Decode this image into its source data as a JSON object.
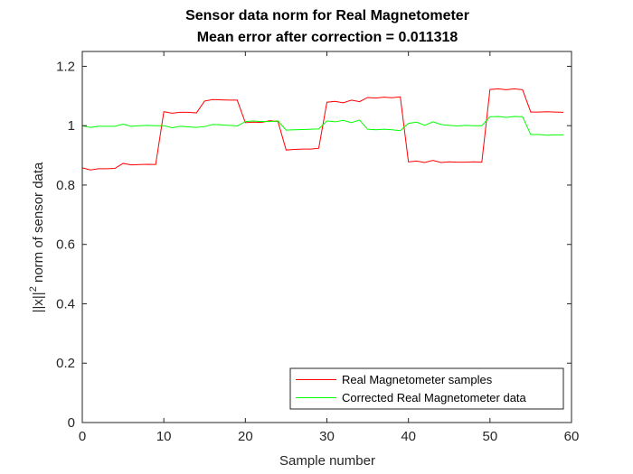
{
  "chart_data": {
    "type": "line",
    "title": "Sensor data norm for Real Magnetometer",
    "subtitle": "Mean error after correction = 0.011318",
    "xlabel": "Sample number",
    "ylabel_prefix": "||x||",
    "ylabel_exponent": "2",
    "ylabel_suffix": " norm of sensor data",
    "xlim": [
      0,
      60
    ],
    "ylim": [
      0,
      1.25
    ],
    "xticks": [
      "0",
      "10",
      "20",
      "30",
      "40",
      "50",
      "60"
    ],
    "xtick_values": [
      0,
      10,
      20,
      30,
      40,
      50,
      60
    ],
    "yticks": [
      "0",
      "0.2",
      "0.4",
      "0.6",
      "0.8",
      "1",
      "1.2"
    ],
    "ytick_values": [
      0,
      0.2,
      0.4,
      0.6,
      0.8,
      1.0,
      1.2
    ],
    "grid": false,
    "legend_position": "bottom-right",
    "x": [
      0,
      1,
      2,
      3,
      4,
      5,
      6,
      7,
      8,
      9,
      10,
      11,
      12,
      13,
      14,
      15,
      16,
      17,
      18,
      19,
      20,
      21,
      22,
      23,
      24,
      25,
      26,
      27,
      28,
      29,
      30,
      31,
      32,
      33,
      34,
      35,
      36,
      37,
      38,
      39,
      40,
      41,
      42,
      43,
      44,
      45,
      46,
      47,
      48,
      49,
      50,
      51,
      52,
      53,
      54,
      55,
      56,
      57,
      58,
      59
    ],
    "series": [
      {
        "name": "Real Magnetometer samples",
        "color": "#ff0000",
        "values": [
          0.858,
          0.851,
          0.855,
          0.855,
          0.856,
          0.873,
          0.868,
          0.869,
          0.87,
          0.869,
          1.047,
          1.042,
          1.045,
          1.045,
          1.043,
          1.083,
          1.088,
          1.087,
          1.086,
          1.086,
          1.01,
          1.012,
          1.011,
          1.017,
          1.014,
          0.918,
          0.92,
          0.921,
          0.921,
          0.924,
          1.079,
          1.082,
          1.077,
          1.086,
          1.081,
          1.095,
          1.093,
          1.096,
          1.094,
          1.097,
          0.878,
          0.881,
          0.876,
          0.883,
          0.876,
          0.878,
          0.877,
          0.877,
          0.878,
          0.877,
          1.122,
          1.124,
          1.121,
          1.124,
          1.121,
          1.046,
          1.046,
          1.047,
          1.046,
          1.045
        ]
      },
      {
        "name": "Corrected Real Magnetometer data",
        "color": "#00ff00",
        "values": [
          1.0,
          0.994,
          0.998,
          0.998,
          0.998,
          1.005,
          0.998,
          1.0,
          1.001,
          1.0,
          1.0,
          0.993,
          0.998,
          0.996,
          0.994,
          0.997,
          1.004,
          1.003,
          1.001,
          0.999,
          1.014,
          1.016,
          1.014,
          1.014,
          1.016,
          0.985,
          0.986,
          0.987,
          0.988,
          0.989,
          1.016,
          1.013,
          1.018,
          1.01,
          1.019,
          0.988,
          0.986,
          0.988,
          0.986,
          0.983,
          1.008,
          1.012,
          1.001,
          1.013,
          1.004,
          1.001,
          0.999,
          1.001,
          1.0,
          1.0,
          1.03,
          1.031,
          1.028,
          1.031,
          1.03,
          0.97,
          0.97,
          0.968,
          0.969,
          0.969
        ]
      }
    ]
  }
}
